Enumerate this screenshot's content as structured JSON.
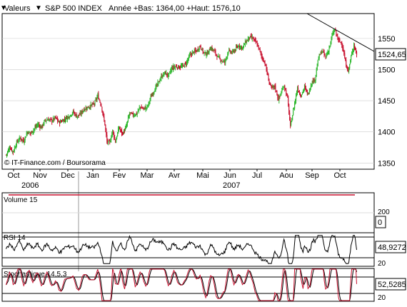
{
  "header": {
    "menu_label": "Valeurs",
    "menu_arrow": "▼",
    "instrument": "S&P 500 INDEX",
    "stats": "Année +Bas: 1364,00 +Haut: 1576,10"
  },
  "credit": "© IT-Finance.com / Boursorama",
  "colors": {
    "up": "#2fb82f",
    "down": "#c8102e",
    "frame": "#000000",
    "grid": "#cccccc"
  },
  "chart_data": [
    {
      "type": "candlestick",
      "title": "S&P 500 INDEX",
      "x_ticks": [
        "Oct",
        "Nov",
        "Dec",
        "Jan",
        "Fev",
        "Mar",
        "Avr",
        "Mai",
        "Jun",
        "Jul",
        "Aou",
        "Sep",
        "Oct"
      ],
      "year_labels": [
        "2006",
        "2007"
      ],
      "y_ticks": [
        1350,
        1400,
        1450,
        1500,
        1550
      ],
      "ylim": [
        1340,
        1590
      ],
      "last_value_label": "1524,65",
      "last_value": 1524.65,
      "trendline": [
        [
          1578,
          1532
        ],
        [
          "start",
          "end"
        ]
      ],
      "anchors": [
        [
          0,
          1363
        ],
        [
          5,
          1375
        ],
        [
          10,
          1368
        ],
        [
          15,
          1383
        ],
        [
          20,
          1390
        ],
        [
          25,
          1385
        ],
        [
          30,
          1400
        ],
        [
          35,
          1398
        ],
        [
          40,
          1405
        ],
        [
          45,
          1412
        ],
        [
          50,
          1407
        ],
        [
          55,
          1418
        ],
        [
          60,
          1420
        ],
        [
          65,
          1418
        ],
        [
          70,
          1423
        ],
        [
          75,
          1415
        ],
        [
          80,
          1418
        ],
        [
          85,
          1422
        ],
        [
          90,
          1426
        ],
        [
          95,
          1432
        ],
        [
          100,
          1425
        ],
        [
          105,
          1428
        ],
        [
          110,
          1436
        ],
        [
          120,
          1442
        ],
        [
          125,
          1445
        ],
        [
          130,
          1458
        ],
        [
          135,
          1442
        ],
        [
          140,
          1412
        ],
        [
          143,
          1384
        ],
        [
          147,
          1383
        ],
        [
          151,
          1402
        ],
        [
          155,
          1384
        ],
        [
          160,
          1407
        ],
        [
          165,
          1397
        ],
        [
          170,
          1407
        ],
        [
          175,
          1430
        ],
        [
          180,
          1427
        ],
        [
          185,
          1429
        ],
        [
          190,
          1440
        ],
        [
          195,
          1437
        ],
        [
          200,
          1440
        ],
        [
          205,
          1455
        ],
        [
          210,
          1467
        ],
        [
          215,
          1477
        ],
        [
          220,
          1488
        ],
        [
          225,
          1495
        ],
        [
          230,
          1490
        ],
        [
          235,
          1502
        ],
        [
          240,
          1505
        ],
        [
          245,
          1504
        ],
        [
          250,
          1505
        ],
        [
          255,
          1510
        ],
        [
          260,
          1522
        ],
        [
          265,
          1528
        ],
        [
          270,
          1530
        ],
        [
          275,
          1538
        ],
        [
          280,
          1527
        ],
        [
          285,
          1525
        ],
        [
          290,
          1535
        ],
        [
          295,
          1530
        ],
        [
          300,
          1520
        ],
        [
          305,
          1515
        ],
        [
          310,
          1512
        ],
        [
          315,
          1530
        ],
        [
          320,
          1527
        ],
        [
          325,
          1532
        ],
        [
          330,
          1539
        ],
        [
          335,
          1535
        ],
        [
          340,
          1545
        ],
        [
          345,
          1552
        ],
        [
          350,
          1550
        ],
        [
          355,
          1542
        ],
        [
          358,
          1535
        ],
        [
          362,
          1522
        ],
        [
          367,
          1510
        ],
        [
          372,
          1484
        ],
        [
          376,
          1470
        ],
        [
          381,
          1473
        ],
        [
          386,
          1452
        ],
        [
          390,
          1463
        ],
        [
          394,
          1475
        ],
        [
          399,
          1454
        ],
        [
          403,
          1408
        ],
        [
          408,
          1440
        ],
        [
          413,
          1470
        ],
        [
          418,
          1458
        ],
        [
          423,
          1472
        ],
        [
          428,
          1460
        ],
        [
          433,
          1479
        ],
        [
          438,
          1485
        ],
        [
          443,
          1520
        ],
        [
          448,
          1530
        ],
        [
          453,
          1520
        ],
        [
          458,
          1534
        ],
        [
          463,
          1558
        ],
        [
          466,
          1564
        ],
        [
          471,
          1547
        ],
        [
          476,
          1542
        ],
        [
          481,
          1512
        ],
        [
          485,
          1497
        ],
        [
          489,
          1520
        ],
        [
          493,
          1540
        ],
        [
          497,
          1524.65
        ]
      ]
    },
    {
      "type": "bar",
      "title": "Volume 15",
      "y_ticks": [
        200
      ],
      "last_value_label": "0",
      "last_value": 0
    },
    {
      "type": "line",
      "title": "RSI 14",
      "y_ticks": [
        20
      ],
      "ylim": [
        0,
        100
      ],
      "levels": [
        80,
        20
      ],
      "last_value_label": "48,9272",
      "last_value": 48.9272
    },
    {
      "type": "line",
      "title": "Stochastique 14,5,3",
      "y_ticks": [
        20
      ],
      "ylim": [
        0,
        100
      ],
      "levels": [
        80,
        20
      ],
      "last_value_label": "52,5285",
      "last_value": 52.5285
    }
  ]
}
